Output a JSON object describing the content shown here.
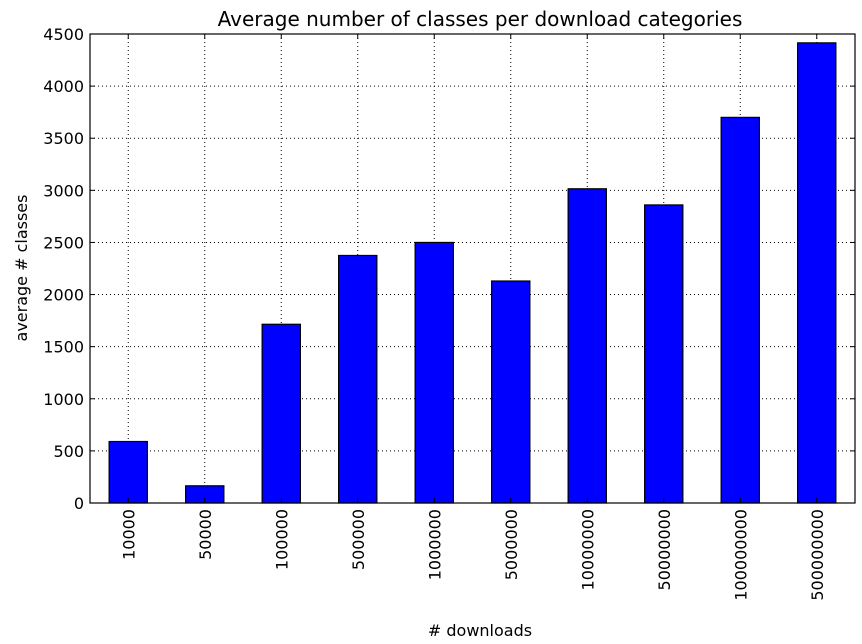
{
  "chart_data": {
    "type": "bar",
    "title": "Average number of classes per download categories",
    "xlabel": "# downloads",
    "ylabel": "average # classes",
    "categories": [
      "10000",
      "50000",
      "100000",
      "500000",
      "1000000",
      "5000000",
      "10000000",
      "50000000",
      "100000000",
      "500000000"
    ],
    "values": [
      590,
      165,
      1715,
      2375,
      2500,
      2130,
      3015,
      2860,
      3700,
      4415
    ],
    "ylim": [
      0,
      4500
    ],
    "yticks": [
      0,
      500,
      1000,
      1500,
      2000,
      2500,
      3000,
      3500,
      4000,
      4500
    ],
    "grid": true,
    "bar_color": "#0000ff"
  }
}
